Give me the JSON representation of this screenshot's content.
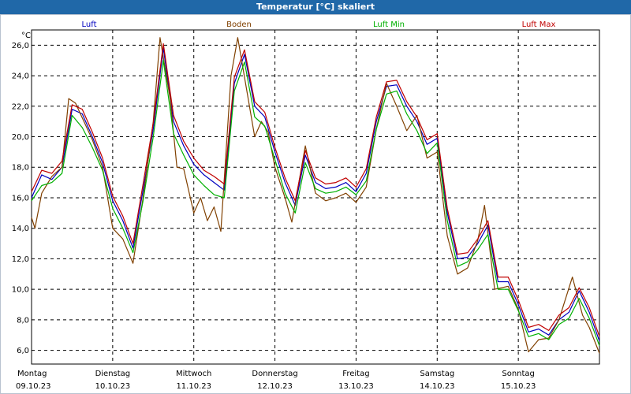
{
  "window": {
    "title": "Temperatur [°C] skaliert",
    "background": "#ffffff",
    "titlebar_color": "#2068a8"
  },
  "chart_data": {
    "type": "line",
    "title": "Temperatur [°C] skaliert",
    "ylabel": "°C",
    "xlabel": "",
    "ylim": [
      5.1,
      27.0
    ],
    "yticks": [
      6.0,
      8.0,
      10.0,
      12.0,
      14.0,
      16.0,
      18.0,
      20.0,
      22.0,
      24.0,
      26.0
    ],
    "ytick_labels": [
      "6,0",
      "8,0",
      "10,0",
      "12,0",
      "14,0",
      "16,0",
      "18,0",
      "20,0",
      "22,0",
      "24,0",
      "26,0"
    ],
    "xlim": [
      "2023-10-09T00:00",
      "2023-10-16T00:00"
    ],
    "x_ticks": [
      {
        "date": "2023-10-09",
        "day": "Montag",
        "label": "09.10.23"
      },
      {
        "date": "2023-10-10",
        "day": "Dienstag",
        "label": "10.10.23"
      },
      {
        "date": "2023-10-11",
        "day": "Mittwoch",
        "label": "11.10.23"
      },
      {
        "date": "2023-10-12",
        "day": "Donnerstag",
        "label": "12.10.23"
      },
      {
        "date": "2023-10-13",
        "day": "Freitag",
        "label": "13.10.23"
      },
      {
        "date": "2023-10-14",
        "day": "Samstag",
        "label": "14.10.23"
      },
      {
        "date": "2023-10-15",
        "day": "Sonntag",
        "label": "15.10.23"
      }
    ],
    "grid": true,
    "legend_position": "top",
    "series": [
      {
        "name": "Luft",
        "color": "#0000c0",
        "points": [
          [
            "2023-10-09T00:00",
            16.0
          ],
          [
            "2023-10-09T03:00",
            17.5
          ],
          [
            "2023-10-09T06:00",
            17.2
          ],
          [
            "2023-10-09T09:00",
            18.0
          ],
          [
            "2023-10-09T12:00",
            21.8
          ],
          [
            "2023-10-09T15:00",
            21.5
          ],
          [
            "2023-10-09T18:00",
            20.0
          ],
          [
            "2023-10-09T21:00",
            18.3
          ],
          [
            "2023-10-10T00:00",
            15.8
          ],
          [
            "2023-10-10T03:00",
            14.5
          ],
          [
            "2023-10-10T06:00",
            12.7
          ],
          [
            "2023-10-10T09:00",
            16.5
          ],
          [
            "2023-10-10T12:00",
            20.5
          ],
          [
            "2023-10-10T15:00",
            25.8
          ],
          [
            "2023-10-10T18:00",
            21.0
          ],
          [
            "2023-10-10T21:00",
            19.4
          ],
          [
            "2023-10-11T00:00",
            18.2
          ],
          [
            "2023-10-11T03:00",
            17.5
          ],
          [
            "2023-10-11T06:00",
            17.0
          ],
          [
            "2023-10-11T09:00",
            16.5
          ],
          [
            "2023-10-11T12:00",
            23.5
          ],
          [
            "2023-10-11T15:00",
            25.4
          ],
          [
            "2023-10-11T18:00",
            22.0
          ],
          [
            "2023-10-11T21:00",
            21.3
          ],
          [
            "2023-10-12T00:00",
            19.0
          ],
          [
            "2023-10-12T03:00",
            17.0
          ],
          [
            "2023-10-12T06:00",
            15.5
          ],
          [
            "2023-10-12T09:00",
            18.8
          ],
          [
            "2023-10-12T12:00",
            17.0
          ],
          [
            "2023-10-12T15:00",
            16.6
          ],
          [
            "2023-10-12T18:00",
            16.7
          ],
          [
            "2023-10-12T21:00",
            17.0
          ],
          [
            "2023-10-13T00:00",
            16.4
          ],
          [
            "2023-10-13T03:00",
            17.6
          ],
          [
            "2023-10-13T06:00",
            21.0
          ],
          [
            "2023-10-13T09:00",
            23.3
          ],
          [
            "2023-10-13T12:00",
            23.4
          ],
          [
            "2023-10-13T15:00",
            22.0
          ],
          [
            "2023-10-13T18:00",
            21.0
          ],
          [
            "2023-10-13T21:00",
            19.5
          ],
          [
            "2023-10-14T00:00",
            19.9
          ],
          [
            "2023-10-14T03:00",
            15.0
          ],
          [
            "2023-10-14T06:00",
            12.0
          ],
          [
            "2023-10-14T09:00",
            12.1
          ],
          [
            "2023-10-14T12:00",
            13.0
          ],
          [
            "2023-10-14T15:00",
            14.2
          ],
          [
            "2023-10-14T18:00",
            10.5
          ],
          [
            "2023-10-14T21:00",
            10.5
          ],
          [
            "2023-10-15T00:00",
            9.0
          ],
          [
            "2023-10-15T03:00",
            7.2
          ],
          [
            "2023-10-15T06:00",
            7.4
          ],
          [
            "2023-10-15T09:00",
            7.0
          ],
          [
            "2023-10-15T12:00",
            8.0
          ],
          [
            "2023-10-15T15:00",
            8.5
          ],
          [
            "2023-10-15T18:00",
            9.9
          ],
          [
            "2023-10-15T21:00",
            8.5
          ],
          [
            "2023-10-16T00:00",
            6.6
          ]
        ]
      },
      {
        "name": "Boden",
        "color": "#804000",
        "points": [
          [
            "2023-10-09T00:00",
            14.7
          ],
          [
            "2023-10-09T01:00",
            14.0
          ],
          [
            "2023-10-09T03:00",
            16.3
          ],
          [
            "2023-10-09T06:00",
            17.4
          ],
          [
            "2023-10-09T09:00",
            18.0
          ],
          [
            "2023-10-09T11:00",
            22.5
          ],
          [
            "2023-10-09T13:00",
            22.2
          ],
          [
            "2023-10-09T18:00",
            19.8
          ],
          [
            "2023-10-09T21:00",
            18.0
          ],
          [
            "2023-10-10T00:00",
            14.0
          ],
          [
            "2023-10-10T03:00",
            13.3
          ],
          [
            "2023-10-10T06:00",
            11.7
          ],
          [
            "2023-10-10T09:00",
            16.0
          ],
          [
            "2023-10-10T12:00",
            21.0
          ],
          [
            "2023-10-10T14:00",
            26.5
          ],
          [
            "2023-10-10T17:00",
            22.5
          ],
          [
            "2023-10-10T19:00",
            18.0
          ],
          [
            "2023-10-10T21:00",
            17.9
          ],
          [
            "2023-10-11T00:00",
            15.0
          ],
          [
            "2023-10-11T02:00",
            16.0
          ],
          [
            "2023-10-11T04:00",
            14.5
          ],
          [
            "2023-10-11T06:00",
            15.4
          ],
          [
            "2023-10-11T08:00",
            13.8
          ],
          [
            "2023-10-11T11:00",
            24.0
          ],
          [
            "2023-10-11T13:00",
            26.5
          ],
          [
            "2023-10-11T18:00",
            20.0
          ],
          [
            "2023-10-11T20:00",
            21.0
          ],
          [
            "2023-10-11T22:00",
            20.3
          ],
          [
            "2023-10-12T00:00",
            18.0
          ],
          [
            "2023-10-12T03:00",
            16.0
          ],
          [
            "2023-10-12T05:00",
            14.4
          ],
          [
            "2023-10-12T09:00",
            19.4
          ],
          [
            "2023-10-12T12:00",
            16.3
          ],
          [
            "2023-10-12T15:00",
            15.8
          ],
          [
            "2023-10-12T18:00",
            16.0
          ],
          [
            "2023-10-12T21:00",
            16.3
          ],
          [
            "2023-10-13T00:00",
            15.7
          ],
          [
            "2023-10-13T03:00",
            16.7
          ],
          [
            "2023-10-13T06:00",
            20.5
          ],
          [
            "2023-10-13T09:00",
            23.5
          ],
          [
            "2023-10-13T12:00",
            22.0
          ],
          [
            "2023-10-13T15:00",
            20.4
          ],
          [
            "2023-10-13T18:00",
            21.4
          ],
          [
            "2023-10-13T21:00",
            18.6
          ],
          [
            "2023-10-14T00:00",
            19.0
          ],
          [
            "2023-10-14T03:00",
            13.5
          ],
          [
            "2023-10-14T06:00",
            11.0
          ],
          [
            "2023-10-14T09:00",
            11.4
          ],
          [
            "2023-10-14T12:00",
            13.2
          ],
          [
            "2023-10-14T14:00",
            15.5
          ],
          [
            "2023-10-14T17:00",
            10.0
          ],
          [
            "2023-10-14T21:00",
            10.2
          ],
          [
            "2023-10-15T00:00",
            8.7
          ],
          [
            "2023-10-15T03:00",
            5.9
          ],
          [
            "2023-10-15T06:00",
            6.7
          ],
          [
            "2023-10-15T09:00",
            6.8
          ],
          [
            "2023-10-15T12:00",
            8.0
          ],
          [
            "2023-10-15T16:00",
            10.8
          ],
          [
            "2023-10-15T19:00",
            8.3
          ],
          [
            "2023-10-15T21:00",
            7.5
          ],
          [
            "2023-10-16T00:00",
            5.8
          ]
        ]
      },
      {
        "name": "Luft Min",
        "color": "#00b000",
        "points": [
          [
            "2023-10-09T00:00",
            15.8
          ],
          [
            "2023-10-09T03:00",
            16.8
          ],
          [
            "2023-10-09T06:00",
            17.0
          ],
          [
            "2023-10-09T09:00",
            17.6
          ],
          [
            "2023-10-09T12:00",
            21.4
          ],
          [
            "2023-10-09T15:00",
            20.6
          ],
          [
            "2023-10-09T18:00",
            19.3
          ],
          [
            "2023-10-09T21:00",
            17.8
          ],
          [
            "2023-10-10T00:00",
            15.3
          ],
          [
            "2023-10-10T03:00",
            14.0
          ],
          [
            "2023-10-10T06:00",
            12.4
          ],
          [
            "2023-10-10T09:00",
            15.8
          ],
          [
            "2023-10-10T12:00",
            20.0
          ],
          [
            "2023-10-10T15:00",
            25.0
          ],
          [
            "2023-10-10T18:00",
            20.2
          ],
          [
            "2023-10-10T21:00",
            18.8
          ],
          [
            "2023-10-11T00:00",
            17.5
          ],
          [
            "2023-10-11T03:00",
            16.8
          ],
          [
            "2023-10-11T06:00",
            16.2
          ],
          [
            "2023-10-11T09:00",
            16.0
          ],
          [
            "2023-10-11T12:00",
            23.0
          ],
          [
            "2023-10-11T15:00",
            24.9
          ],
          [
            "2023-10-11T18:00",
            21.3
          ],
          [
            "2023-10-11T21:00",
            20.7
          ],
          [
            "2023-10-12T00:00",
            18.5
          ],
          [
            "2023-10-12T03:00",
            16.3
          ],
          [
            "2023-10-12T06:00",
            15.0
          ],
          [
            "2023-10-12T09:00",
            18.3
          ],
          [
            "2023-10-12T12:00",
            16.6
          ],
          [
            "2023-10-12T15:00",
            16.3
          ],
          [
            "2023-10-12T18:00",
            16.4
          ],
          [
            "2023-10-12T21:00",
            16.7
          ],
          [
            "2023-10-13T00:00",
            16.2
          ],
          [
            "2023-10-13T03:00",
            17.1
          ],
          [
            "2023-10-13T06:00",
            20.5
          ],
          [
            "2023-10-13T09:00",
            22.8
          ],
          [
            "2023-10-13T12:00",
            23.0
          ],
          [
            "2023-10-13T15:00",
            21.5
          ],
          [
            "2023-10-13T18:00",
            20.4
          ],
          [
            "2023-10-13T21:00",
            18.9
          ],
          [
            "2023-10-14T00:00",
            19.6
          ],
          [
            "2023-10-14T03:00",
            14.5
          ],
          [
            "2023-10-14T06:00",
            11.5
          ],
          [
            "2023-10-14T09:00",
            11.8
          ],
          [
            "2023-10-14T12:00",
            12.6
          ],
          [
            "2023-10-14T15:00",
            13.6
          ],
          [
            "2023-10-14T18:00",
            10.0
          ],
          [
            "2023-10-14T21:00",
            10.0
          ],
          [
            "2023-10-15T00:00",
            8.6
          ],
          [
            "2023-10-15T03:00",
            6.9
          ],
          [
            "2023-10-15T06:00",
            7.1
          ],
          [
            "2023-10-15T09:00",
            6.7
          ],
          [
            "2023-10-15T12:00",
            7.7
          ],
          [
            "2023-10-15T15:00",
            8.1
          ],
          [
            "2023-10-15T18:00",
            9.4
          ],
          [
            "2023-10-15T21:00",
            8.1
          ],
          [
            "2023-10-16T00:00",
            6.3
          ]
        ]
      },
      {
        "name": "Luft Max",
        "color": "#c00000",
        "points": [
          [
            "2023-10-09T00:00",
            16.4
          ],
          [
            "2023-10-09T03:00",
            17.8
          ],
          [
            "2023-10-09T06:00",
            17.6
          ],
          [
            "2023-10-09T09:00",
            18.4
          ],
          [
            "2023-10-09T12:00",
            22.1
          ],
          [
            "2023-10-09T15:00",
            21.8
          ],
          [
            "2023-10-09T18:00",
            20.3
          ],
          [
            "2023-10-09T21:00",
            18.6
          ],
          [
            "2023-10-10T00:00",
            16.1
          ],
          [
            "2023-10-10T03:00",
            14.8
          ],
          [
            "2023-10-10T06:00",
            13.0
          ],
          [
            "2023-10-10T09:00",
            16.9
          ],
          [
            "2023-10-10T12:00",
            20.9
          ],
          [
            "2023-10-10T15:00",
            26.1
          ],
          [
            "2023-10-10T18:00",
            21.4
          ],
          [
            "2023-10-10T21:00",
            19.7
          ],
          [
            "2023-10-11T00:00",
            18.6
          ],
          [
            "2023-10-11T03:00",
            17.8
          ],
          [
            "2023-10-11T06:00",
            17.4
          ],
          [
            "2023-10-11T09:00",
            16.9
          ],
          [
            "2023-10-11T12:00",
            23.9
          ],
          [
            "2023-10-11T15:00",
            25.7
          ],
          [
            "2023-10-11T18:00",
            22.3
          ],
          [
            "2023-10-11T21:00",
            21.6
          ],
          [
            "2023-10-12T00:00",
            19.3
          ],
          [
            "2023-10-12T03:00",
            17.3
          ],
          [
            "2023-10-12T06:00",
            15.8
          ],
          [
            "2023-10-12T09:00",
            19.1
          ],
          [
            "2023-10-12T12:00",
            17.3
          ],
          [
            "2023-10-12T15:00",
            16.9
          ],
          [
            "2023-10-12T18:00",
            17.0
          ],
          [
            "2023-10-12T21:00",
            17.3
          ],
          [
            "2023-10-13T00:00",
            16.7
          ],
          [
            "2023-10-13T03:00",
            17.9
          ],
          [
            "2023-10-13T06:00",
            21.3
          ],
          [
            "2023-10-13T09:00",
            23.6
          ],
          [
            "2023-10-13T12:00",
            23.7
          ],
          [
            "2023-10-13T15:00",
            22.3
          ],
          [
            "2023-10-13T18:00",
            21.3
          ],
          [
            "2023-10-13T21:00",
            19.8
          ],
          [
            "2023-10-14T00:00",
            20.2
          ],
          [
            "2023-10-14T03:00",
            15.3
          ],
          [
            "2023-10-14T06:00",
            12.3
          ],
          [
            "2023-10-14T09:00",
            12.4
          ],
          [
            "2023-10-14T12:00",
            13.3
          ],
          [
            "2023-10-14T15:00",
            14.5
          ],
          [
            "2023-10-14T18:00",
            10.8
          ],
          [
            "2023-10-14T21:00",
            10.8
          ],
          [
            "2023-10-15T00:00",
            9.3
          ],
          [
            "2023-10-15T03:00",
            7.5
          ],
          [
            "2023-10-15T06:00",
            7.7
          ],
          [
            "2023-10-15T09:00",
            7.3
          ],
          [
            "2023-10-15T12:00",
            8.3
          ],
          [
            "2023-10-15T15:00",
            8.8
          ],
          [
            "2023-10-15T18:00",
            10.1
          ],
          [
            "2023-10-15T21:00",
            8.8
          ],
          [
            "2023-10-16T00:00",
            6.9
          ]
        ]
      }
    ]
  }
}
